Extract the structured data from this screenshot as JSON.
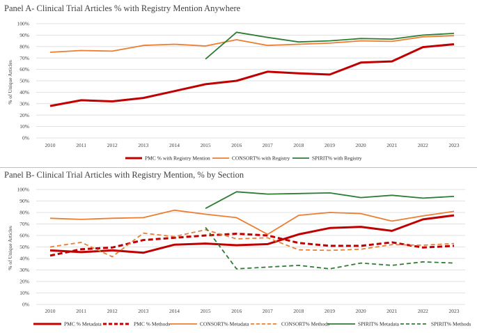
{
  "chart_data": [
    {
      "type": "line",
      "title": "Panel A- Clinical Trial Articles % with Registry Mention Anywhere",
      "ylabel": "% of Unique Articles",
      "xlabel": "",
      "ylim": [
        0,
        100
      ],
      "yticks": [
        "0%",
        "10%",
        "20%",
        "30%",
        "40%",
        "50%",
        "60%",
        "70%",
        "80%",
        "90%",
        "100%"
      ],
      "categories": [
        "2010",
        "2011",
        "2012",
        "2013",
        "2014",
        "2015",
        "2016",
        "2017",
        "2018",
        "2019",
        "2020",
        "2021",
        "2022",
        "2023"
      ],
      "legend_position": "bottom",
      "series": [
        {
          "name": "PMC % with Registry Mention",
          "color": "#c00000",
          "dash": "solid",
          "weight": "thick",
          "values": [
            28,
            33,
            32,
            35,
            41,
            47,
            50,
            58,
            56.5,
            55.5,
            66,
            67,
            79.5,
            82
          ]
        },
        {
          "name": "CONSORT% with Registry",
          "color": "#ed7d31",
          "dash": "solid",
          "weight": "normal",
          "values": [
            75,
            76.5,
            76,
            81,
            82,
            80.5,
            86,
            81,
            82,
            83,
            85,
            84.5,
            88.5,
            89.5
          ]
        },
        {
          "name": "SPIRIT% with Registry",
          "color": "#2e7d32",
          "dash": "solid",
          "weight": "normal",
          "values": [
            null,
            null,
            null,
            null,
            null,
            69,
            92.5,
            88,
            84,
            85,
            87,
            86.5,
            90,
            91.5
          ]
        }
      ]
    },
    {
      "type": "line",
      "title": "Panel B- Clinical Trial Articles with Registry Mention, % by Section",
      "ylabel": "% of Unique Articles",
      "xlabel": "",
      "ylim": [
        0,
        100
      ],
      "yticks": [
        "0%",
        "10%",
        "20%",
        "30%",
        "40%",
        "50%",
        "60%",
        "70%",
        "80%",
        "90%",
        "100%"
      ],
      "categories": [
        "2010",
        "2011",
        "2012",
        "2013",
        "2014",
        "2015",
        "2016",
        "2017",
        "2018",
        "2019",
        "2020",
        "2021",
        "2022",
        "2023"
      ],
      "legend_position": "bottom",
      "series": [
        {
          "name": "PMC % Metadata",
          "color": "#c00000",
          "dash": "solid",
          "weight": "thick",
          "values": [
            47,
            45.5,
            47,
            45,
            52,
            53,
            51.5,
            52.5,
            61,
            66.5,
            67.5,
            64,
            74,
            77.5
          ]
        },
        {
          "name": "PMC % Methods",
          "color": "#c00000",
          "dash": "dashed",
          "weight": "thick",
          "values": [
            42.5,
            48,
            49.5,
            56,
            58,
            60,
            61.5,
            60,
            53.5,
            51,
            51,
            54,
            49.5,
            51
          ]
        },
        {
          "name": "CONSORT% Metadata",
          "color": "#ed7d31",
          "dash": "solid",
          "weight": "normal",
          "values": [
            75,
            74,
            75,
            75.5,
            82,
            78.5,
            75.5,
            61,
            77.5,
            80,
            79,
            72.5,
            77,
            81
          ]
        },
        {
          "name": "CONSORT% Methods",
          "color": "#ed7d31",
          "dash": "dashed",
          "weight": "normal",
          "values": [
            50,
            54,
            41.5,
            62,
            59,
            65,
            57,
            58,
            47.5,
            47,
            48,
            52,
            51.5,
            53
          ]
        },
        {
          "name": "SPIRIT% Metadata",
          "color": "#2e7d32",
          "dash": "solid",
          "weight": "normal",
          "values": [
            null,
            null,
            null,
            null,
            null,
            83.5,
            98,
            96,
            96.5,
            97,
            93,
            95,
            92.5,
            94
          ]
        },
        {
          "name": "SPIRIT% Methods",
          "color": "#2e7d32",
          "dash": "dashed",
          "weight": "normal",
          "values": [
            null,
            null,
            null,
            null,
            null,
            67,
            31,
            32.5,
            34,
            31,
            36,
            34,
            37,
            36
          ]
        }
      ]
    }
  ]
}
